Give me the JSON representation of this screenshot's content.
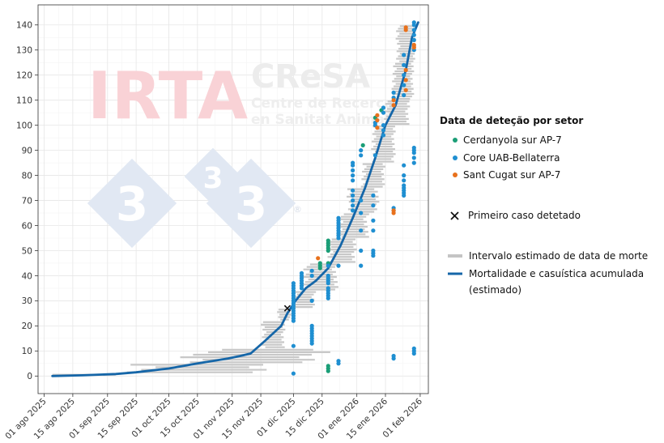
{
  "watermark": {
    "irta": "IRTA",
    "cresa": "CReSA",
    "cresa_sub1": "Centre de Recerca",
    "cresa_sub2": "en Sanitat Animal",
    "logo_digit": "3",
    "registered": "®"
  },
  "chart_data": {
    "type": "scatter",
    "x_ticks": [
      "01 ago 2025",
      "15 ago 2025",
      "01 sep 2025",
      "15 sep 2025",
      "01 oct 2025",
      "15 oct 2025",
      "01 nov 2025",
      "15 nov 2025",
      "01 dic 2025",
      "15 dic 2025",
      "01 ene 2026",
      "15 ene 2026",
      "01 feb 2026"
    ],
    "x_range": [
      "2025-07-29",
      "2026-02-05"
    ],
    "y_ticks": [
      0,
      10,
      20,
      30,
      40,
      50,
      60,
      70,
      80,
      90,
      100,
      110,
      120,
      130,
      140
    ],
    "y_range": [
      -7,
      148
    ],
    "grid": true,
    "legend_placement": "right",
    "legend": {
      "title": "Data de deteção por setor",
      "sectors": [
        {
          "name": "Cerdanyola sur AP-7",
          "color": "#1b9e77"
        },
        {
          "name": "Core UAB-Bellaterra",
          "color": "#1f8fd1"
        },
        {
          "name": "Sant Cugat sur AP-7",
          "color": "#e8711c"
        }
      ],
      "first_case": "Primeiro caso detetado",
      "interval": "Intervalo estimado de data de morte",
      "cumulative_line1": "Mortalidade e casuística acumulada",
      "cumulative_line2": "(estimado)"
    },
    "cumulative_line": [
      [
        "2025-08-05",
        0
      ],
      [
        "2025-08-20",
        0.3
      ],
      [
        "2025-09-05",
        0.8
      ],
      [
        "2025-09-15",
        1.5
      ],
      [
        "2025-10-01",
        3
      ],
      [
        "2025-10-15",
        5
      ],
      [
        "2025-10-30",
        7
      ],
      [
        "2025-11-05",
        8
      ],
      [
        "2025-11-10",
        9
      ],
      [
        "2025-11-17",
        14
      ],
      [
        "2025-11-25",
        20
      ],
      [
        "2025-11-28",
        25
      ],
      [
        "2025-12-02",
        30
      ],
      [
        "2025-12-07",
        35
      ],
      [
        "2025-12-12",
        38
      ],
      [
        "2025-12-18",
        43
      ],
      [
        "2025-12-24",
        52
      ],
      [
        "2025-12-30",
        63
      ],
      [
        "2026-01-05",
        75
      ],
      [
        "2026-01-10",
        87
      ],
      [
        "2026-01-15",
        100
      ],
      [
        "2026-01-20",
        108
      ],
      [
        "2026-01-25",
        122
      ],
      [
        "2026-01-28",
        135
      ],
      [
        "2026-01-31",
        141
      ]
    ],
    "first_case": [
      "2025-11-28",
      27
    ],
    "interval_bands": [
      {
        "y0": 0,
        "y1": 1,
        "start": "2025-08-05",
        "end": "2025-09-05"
      },
      {
        "y0": 1,
        "y1": 5,
        "start": "2025-09-07",
        "end": "2025-11-23"
      },
      {
        "y0": 5,
        "y1": 9,
        "start": "2025-10-05",
        "end": "2025-12-13"
      },
      {
        "y0": 9,
        "y1": 11,
        "start": "2025-10-10",
        "end": "2025-12-24"
      },
      {
        "y0": 11,
        "y1": 22,
        "start": "2025-11-15",
        "end": "2025-11-27"
      },
      {
        "y0": 22,
        "y1": 27,
        "start": "2025-11-23",
        "end": "2025-11-30"
      },
      {
        "y0": 27,
        "y1": 34,
        "start": "2025-11-30",
        "end": "2025-12-12"
      },
      {
        "y0": 34,
        "y1": 45,
        "start": "2025-12-05",
        "end": "2025-12-23"
      },
      {
        "y0": 45,
        "y1": 55,
        "start": "2025-12-17",
        "end": "2026-01-01"
      },
      {
        "y0": 55,
        "y1": 65,
        "start": "2025-12-22",
        "end": "2026-01-07"
      },
      {
        "y0": 65,
        "y1": 75,
        "start": "2025-12-27",
        "end": "2026-01-12"
      },
      {
        "y0": 75,
        "y1": 85,
        "start": "2026-01-03",
        "end": "2026-01-15"
      },
      {
        "y0": 85,
        "y1": 100,
        "start": "2026-01-08",
        "end": "2026-01-20"
      },
      {
        "y0": 100,
        "y1": 110,
        "start": "2026-01-14",
        "end": "2026-01-27"
      },
      {
        "y0": 110,
        "y1": 125,
        "start": "2026-01-18",
        "end": "2026-01-29"
      },
      {
        "y0": 125,
        "y1": 140,
        "start": "2026-01-20",
        "end": "2026-01-30"
      }
    ],
    "detections": [
      {
        "sector": "Core UAB-Bellaterra",
        "date": "2025-12-01",
        "values": [
          1,
          12,
          22,
          23,
          24,
          25,
          26,
          27,
          28,
          29,
          30,
          31,
          32,
          33,
          34,
          35,
          36,
          37
        ]
      },
      {
        "sector": "Core UAB-Bellaterra",
        "date": "2025-12-05",
        "values": [
          35,
          36,
          37,
          38,
          39,
          40,
          41
        ]
      },
      {
        "sector": "Core UAB-Bellaterra",
        "date": "2025-12-10",
        "values": [
          13,
          14,
          15,
          16,
          17,
          18,
          19,
          20,
          30,
          40,
          42
        ]
      },
      {
        "sector": "Cerdanyola sur AP-7",
        "date": "2025-12-14",
        "values": [
          43,
          44,
          45
        ]
      },
      {
        "sector": "Sant Cugat sur AP-7",
        "date": "2025-12-13",
        "values": [
          47
        ]
      },
      {
        "sector": "Cerdanyola sur AP-7",
        "date": "2025-12-18",
        "values": [
          2,
          3,
          4,
          45,
          50,
          51,
          52,
          53,
          54
        ]
      },
      {
        "sector": "Core UAB-Bellaterra",
        "date": "2025-12-18",
        "values": [
          31,
          32,
          33,
          34,
          35,
          37,
          38,
          39,
          40,
          44
        ]
      },
      {
        "sector": "Core UAB-Bellaterra",
        "date": "2025-12-23",
        "values": [
          5,
          6,
          44,
          55,
          56,
          57,
          58,
          59,
          60,
          61,
          62,
          63
        ]
      },
      {
        "sector": "Core UAB-Bellaterra",
        "date": "2025-12-30",
        "values": [
          66,
          68,
          70,
          72,
          74,
          78,
          80,
          82,
          84,
          85
        ]
      },
      {
        "sector": "Cerdanyola sur AP-7",
        "date": "2026-01-04",
        "values": [
          92
        ]
      },
      {
        "sector": "Core UAB-Bellaterra",
        "date": "2026-01-03",
        "values": [
          44,
          50,
          58,
          65,
          70,
          88,
          90
        ]
      },
      {
        "sector": "Core UAB-Bellaterra",
        "date": "2026-01-09",
        "values": [
          48,
          49,
          50,
          58,
          62,
          68,
          72
        ]
      },
      {
        "sector": "Cerdanyola sur AP-7",
        "date": "2026-01-10",
        "values": [
          103
        ]
      },
      {
        "sector": "Core UAB-Bellaterra",
        "date": "2026-01-10",
        "values": [
          88,
          100,
          101
        ]
      },
      {
        "sector": "Sant Cugat sur AP-7",
        "date": "2026-01-11",
        "values": [
          99,
          102,
          104
        ]
      },
      {
        "sector": "Cerdanyola sur AP-7",
        "date": "2026-01-13",
        "values": [
          106
        ]
      },
      {
        "sector": "Core UAB-Bellaterra",
        "date": "2026-01-14",
        "values": [
          96,
          98,
          100,
          105,
          107
        ]
      },
      {
        "sector": "Core UAB-Bellaterra",
        "date": "2026-01-19",
        "values": [
          7,
          8,
          66,
          67,
          111,
          113
        ]
      },
      {
        "sector": "Sant Cugat sur AP-7",
        "date": "2026-01-19",
        "values": [
          65,
          66,
          108,
          110
        ]
      },
      {
        "sector": "Core UAB-Bellaterra",
        "date": "2026-01-24",
        "values": [
          72,
          73,
          74,
          75,
          76,
          78,
          80,
          84,
          112,
          116,
          120,
          124,
          128
        ]
      },
      {
        "sector": "Sant Cugat sur AP-7",
        "date": "2026-01-25",
        "values": [
          114,
          118,
          122,
          138,
          139
        ]
      },
      {
        "sector": "Core UAB-Bellaterra",
        "date": "2026-01-29",
        "values": [
          9,
          10,
          11,
          85,
          87,
          89,
          90,
          91,
          130,
          134,
          136,
          138,
          140,
          141
        ]
      },
      {
        "sector": "Sant Cugat sur AP-7",
        "date": "2026-01-29",
        "values": [
          131,
          132
        ]
      }
    ]
  }
}
